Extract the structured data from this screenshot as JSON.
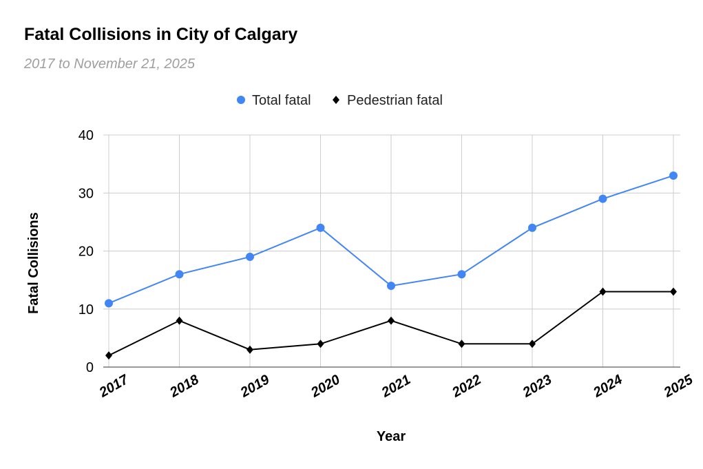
{
  "chart_data": {
    "type": "line",
    "title": "Fatal Collisions in City of Calgary",
    "subtitle": "2017 to November 21, 2025",
    "xlabel": "Year",
    "ylabel": "Fatal Collisions",
    "categories": [
      "2017",
      "2018",
      "2019",
      "2020",
      "2021",
      "2022",
      "2023",
      "2024",
      "2025"
    ],
    "ylim": [
      0,
      40
    ],
    "yticks": [
      "0",
      "10",
      "20",
      "30",
      "40"
    ],
    "grid": true,
    "legend_position": "top",
    "series": [
      {
        "name": "Total fatal",
        "color": "#4285f4",
        "marker": "circle",
        "values": [
          11,
          16,
          19,
          24,
          14,
          16,
          24,
          29,
          33
        ]
      },
      {
        "name": "Pedestrian fatal",
        "color": "#000000",
        "marker": "diamond",
        "values": [
          2,
          8,
          3,
          4,
          8,
          4,
          4,
          13,
          13
        ]
      }
    ]
  }
}
